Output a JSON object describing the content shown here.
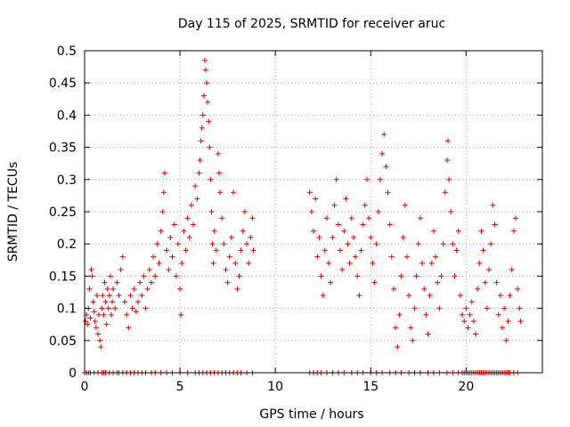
{
  "chart_data": {
    "type": "scatter",
    "title": "Day 115 of 2025, SRMTID for receiver aruc",
    "xlabel": "GPS time / hours",
    "ylabel": "SRMTID / TECUs",
    "xlim": [
      0,
      24
    ],
    "ylim": [
      0,
      0.5
    ],
    "xticks": [
      0,
      5,
      10,
      15,
      20
    ],
    "xtick_labels": [
      "0",
      "5",
      "10",
      "15",
      "20"
    ],
    "yticks": [
      0,
      0.05,
      0.1,
      0.15,
      0.2,
      0.25,
      0.3,
      0.35,
      0.4,
      0.45,
      0.5
    ],
    "ytick_labels": [
      "0",
      "0.05",
      "0.1",
      "0.15",
      "0.2",
      "0.25",
      "0.3",
      "0.35",
      "0.4",
      "0.45",
      "0.5"
    ],
    "grid": true,
    "marker": "+",
    "color": "#e00000",
    "series": [
      {
        "name": "SRMTID",
        "points": [
          [
            0.05,
            0.08
          ],
          [
            0.1,
            0.09
          ],
          [
            0.15,
            0.075
          ],
          [
            0.2,
            0.1
          ],
          [
            0.25,
            0.13
          ],
          [
            0.3,
            0.085
          ],
          [
            0.35,
            0.16
          ],
          [
            0.4,
            0.15
          ],
          [
            0.45,
            0.11
          ],
          [
            0.5,
            0.095
          ],
          [
            0.55,
            0.08
          ],
          [
            0.6,
            0.07
          ],
          [
            0.65,
            0.12
          ],
          [
            0.7,
            0.06
          ],
          [
            0.75,
            0.09
          ],
          [
            0.8,
            0.05
          ],
          [
            0.85,
            0.04
          ],
          [
            0.9,
            0.1
          ],
          [
            0.95,
            0.12
          ],
          [
            1.0,
            0.09
          ],
          [
            1.05,
            0.14
          ],
          [
            1.1,
            0.11
          ],
          [
            1.15,
            0.075
          ],
          [
            1.2,
            0.13
          ],
          [
            1.25,
            0.1
          ],
          [
            1.3,
            0.12
          ],
          [
            1.35,
            0.15
          ],
          [
            1.4,
            0.09
          ],
          [
            1.45,
            0.11
          ],
          [
            1.5,
            0.13
          ],
          [
            1.6,
            0.1
          ],
          [
            1.7,
            0.14
          ],
          [
            1.8,
            0.12
          ],
          [
            1.9,
            0.16
          ],
          [
            2.0,
            0.18
          ],
          [
            2.1,
            0.11
          ],
          [
            2.2,
            0.09
          ],
          [
            2.3,
            0.07
          ],
          [
            2.4,
            0.12
          ],
          [
            2.5,
            0.1
          ],
          [
            2.6,
            0.13
          ],
          [
            2.7,
            0.095
          ],
          [
            2.8,
            0.11
          ],
          [
            2.9,
            0.14
          ],
          [
            3.0,
            0.12
          ],
          [
            3.1,
            0.15
          ],
          [
            3.2,
            0.1
          ],
          [
            3.3,
            0.13
          ],
          [
            3.4,
            0.16
          ],
          [
            3.5,
            0.14
          ],
          [
            3.6,
            0.18
          ],
          [
            3.7,
            0.15
          ],
          [
            3.8,
            0.2
          ],
          [
            3.9,
            0.17
          ],
          [
            4.0,
            0.22
          ],
          [
            4.1,
            0.25
          ],
          [
            4.15,
            0.28
          ],
          [
            4.2,
            0.31
          ],
          [
            4.3,
            0.19
          ],
          [
            4.4,
            0.16
          ],
          [
            4.5,
            0.21
          ],
          [
            4.6,
            0.18
          ],
          [
            4.7,
            0.23
          ],
          [
            4.8,
            0.15
          ],
          [
            4.9,
            0.2
          ],
          [
            5.0,
            0.13
          ],
          [
            5.05,
            0.09
          ],
          [
            5.1,
            0.17
          ],
          [
            5.2,
            0.22
          ],
          [
            5.3,
            0.19
          ],
          [
            5.4,
            0.24
          ],
          [
            5.5,
            0.21
          ],
          [
            5.6,
            0.26
          ],
          [
            5.7,
            0.23
          ],
          [
            5.8,
            0.29
          ],
          [
            5.9,
            0.27
          ],
          [
            6.0,
            0.31
          ],
          [
            6.05,
            0.33
          ],
          [
            6.1,
            0.36
          ],
          [
            6.15,
            0.38
          ],
          [
            6.2,
            0.4
          ],
          [
            6.25,
            0.43
          ],
          [
            6.3,
            0.485
          ],
          [
            6.35,
            0.47
          ],
          [
            6.4,
            0.45
          ],
          [
            6.45,
            0.42
          ],
          [
            6.5,
            0.39
          ],
          [
            6.55,
            0.35
          ],
          [
            6.6,
            0.3
          ],
          [
            6.65,
            0.25
          ],
          [
            6.7,
            0.2
          ],
          [
            6.75,
            0.17
          ],
          [
            6.8,
            0.22
          ],
          [
            6.9,
            0.19
          ],
          [
            7.0,
            0.34
          ],
          [
            7.05,
            0.31
          ],
          [
            7.1,
            0.28
          ],
          [
            7.2,
            0.24
          ],
          [
            7.3,
            0.2
          ],
          [
            7.4,
            0.16
          ],
          [
            7.5,
            0.14
          ],
          [
            7.6,
            0.18
          ],
          [
            7.7,
            0.21
          ],
          [
            7.8,
            0.28
          ],
          [
            7.9,
            0.17
          ],
          [
            8.0,
            0.13
          ],
          [
            8.1,
            0.15
          ],
          [
            8.2,
            0.19
          ],
          [
            8.3,
            0.22
          ],
          [
            8.4,
            0.25
          ],
          [
            8.5,
            0.2
          ],
          [
            8.6,
            0.17
          ],
          [
            8.7,
            0.21
          ],
          [
            8.8,
            0.24
          ],
          [
            8.85,
            0.19
          ],
          [
            11.8,
            0.28
          ],
          [
            11.9,
            0.25
          ],
          [
            12.0,
            0.22
          ],
          [
            12.1,
            0.27
          ],
          [
            12.2,
            0.18
          ],
          [
            12.3,
            0.21
          ],
          [
            12.4,
            0.15
          ],
          [
            12.5,
            0.12
          ],
          [
            12.6,
            0.19
          ],
          [
            12.7,
            0.24
          ],
          [
            12.8,
            0.17
          ],
          [
            12.9,
            0.14
          ],
          [
            13.0,
            0.21
          ],
          [
            13.1,
            0.26
          ],
          [
            13.2,
            0.3
          ],
          [
            13.3,
            0.23
          ],
          [
            13.4,
            0.19
          ],
          [
            13.5,
            0.16
          ],
          [
            13.6,
            0.22
          ],
          [
            13.7,
            0.27
          ],
          [
            13.8,
            0.2
          ],
          [
            13.9,
            0.17
          ],
          [
            14.0,
            0.24
          ],
          [
            14.1,
            0.21
          ],
          [
            14.2,
            0.18
          ],
          [
            14.3,
            0.15
          ],
          [
            14.4,
            0.12
          ],
          [
            14.5,
            0.19
          ],
          [
            14.6,
            0.23
          ],
          [
            14.7,
            0.26
          ],
          [
            14.8,
            0.3
          ],
          [
            14.9,
            0.24
          ],
          [
            15.0,
            0.21
          ],
          [
            15.1,
            0.17
          ],
          [
            15.2,
            0.14
          ],
          [
            15.3,
            0.2
          ],
          [
            15.4,
            0.25
          ],
          [
            15.5,
            0.3
          ],
          [
            15.6,
            0.34
          ],
          [
            15.7,
            0.37
          ],
          [
            15.8,
            0.32
          ],
          [
            15.9,
            0.28
          ],
          [
            16.0,
            0.23
          ],
          [
            16.1,
            0.18
          ],
          [
            16.2,
            0.13
          ],
          [
            16.3,
            0.07
          ],
          [
            16.4,
            0.04
          ],
          [
            16.5,
            0.09
          ],
          [
            16.6,
            0.15
          ],
          [
            16.7,
            0.21
          ],
          [
            16.8,
            0.26
          ],
          [
            16.9,
            0.18
          ],
          [
            17.0,
            0.12
          ],
          [
            17.1,
            0.07
          ],
          [
            17.2,
            0.05
          ],
          [
            17.3,
            0.1
          ],
          [
            17.4,
            0.15
          ],
          [
            17.5,
            0.2
          ],
          [
            17.6,
            0.24
          ],
          [
            17.7,
            0.17
          ],
          [
            17.8,
            0.13
          ],
          [
            17.9,
            0.09
          ],
          [
            18.0,
            0.06
          ],
          [
            18.1,
            0.12
          ],
          [
            18.2,
            0.17
          ],
          [
            18.3,
            0.22
          ],
          [
            18.4,
            0.18
          ],
          [
            18.5,
            0.14
          ],
          [
            18.6,
            0.1
          ],
          [
            18.7,
            0.15
          ],
          [
            18.8,
            0.2
          ],
          [
            18.9,
            0.28
          ],
          [
            19.0,
            0.33
          ],
          [
            19.05,
            0.36
          ],
          [
            19.1,
            0.3
          ],
          [
            19.2,
            0.25
          ],
          [
            19.3,
            0.2
          ],
          [
            19.4,
            0.15
          ],
          [
            19.5,
            0.19
          ],
          [
            19.6,
            0.22
          ],
          [
            19.7,
            0.12
          ],
          [
            19.8,
            0.09
          ],
          [
            19.9,
            0.08
          ],
          [
            20.0,
            0.1
          ],
          [
            20.1,
            0.07
          ],
          [
            20.2,
            0.09
          ],
          [
            20.3,
            0.11
          ],
          [
            20.4,
            0.08
          ],
          [
            20.5,
            0.06
          ],
          [
            20.6,
            0.13
          ],
          [
            20.7,
            0.17
          ],
          [
            20.8,
            0.22
          ],
          [
            20.9,
            0.19
          ],
          [
            21.0,
            0.14
          ],
          [
            21.1,
            0.1
          ],
          [
            21.2,
            0.16
          ],
          [
            21.3,
            0.2
          ],
          [
            21.4,
            0.26
          ],
          [
            21.5,
            0.23
          ],
          [
            21.6,
            0.14
          ],
          [
            21.7,
            0.09
          ],
          [
            21.8,
            0.12
          ],
          [
            21.9,
            0.07
          ],
          [
            22.0,
            0.1
          ],
          [
            22.1,
            0.05
          ],
          [
            22.2,
            0.08
          ],
          [
            22.3,
            0.12
          ],
          [
            22.4,
            0.16
          ],
          [
            22.5,
            0.22
          ],
          [
            22.6,
            0.24
          ],
          [
            22.7,
            0.13
          ],
          [
            22.8,
            0.1
          ],
          [
            22.85,
            0.08
          ]
        ],
        "zero_hours": [
          0.0,
          0.1,
          0.2,
          0.3,
          0.5,
          0.7,
          0.9,
          1.0,
          1.1,
          1.3,
          1.5,
          1.7,
          1.8,
          2.0,
          2.2,
          2.4,
          2.6,
          2.8,
          3.0,
          3.2,
          3.5,
          3.7,
          4.0,
          4.3,
          4.6,
          5.0,
          5.4,
          5.8,
          6.0,
          6.2,
          6.4,
          6.6,
          6.8,
          7.0,
          7.2,
          7.4,
          7.6,
          7.8,
          8.0,
          8.2,
          8.5,
          8.8,
          11.8,
          12.0,
          12.2,
          12.4,
          12.7,
          13.0,
          13.3,
          13.6,
          14.0,
          14.3,
          14.6,
          15.0,
          15.3,
          15.6,
          16.0,
          16.3,
          16.6,
          17.0,
          17.3,
          17.6,
          18.0,
          18.3,
          18.6,
          19.0,
          19.3,
          19.6,
          19.8,
          19.9,
          20.0,
          20.1,
          20.2,
          20.3,
          20.4,
          20.5,
          20.6,
          20.7,
          20.8,
          20.9,
          21.0,
          21.1,
          21.2,
          21.3,
          21.4,
          21.5,
          21.6,
          21.7,
          21.8,
          21.9,
          22.0,
          22.1,
          22.2,
          22.3,
          22.5,
          22.7
        ]
      }
    ]
  }
}
